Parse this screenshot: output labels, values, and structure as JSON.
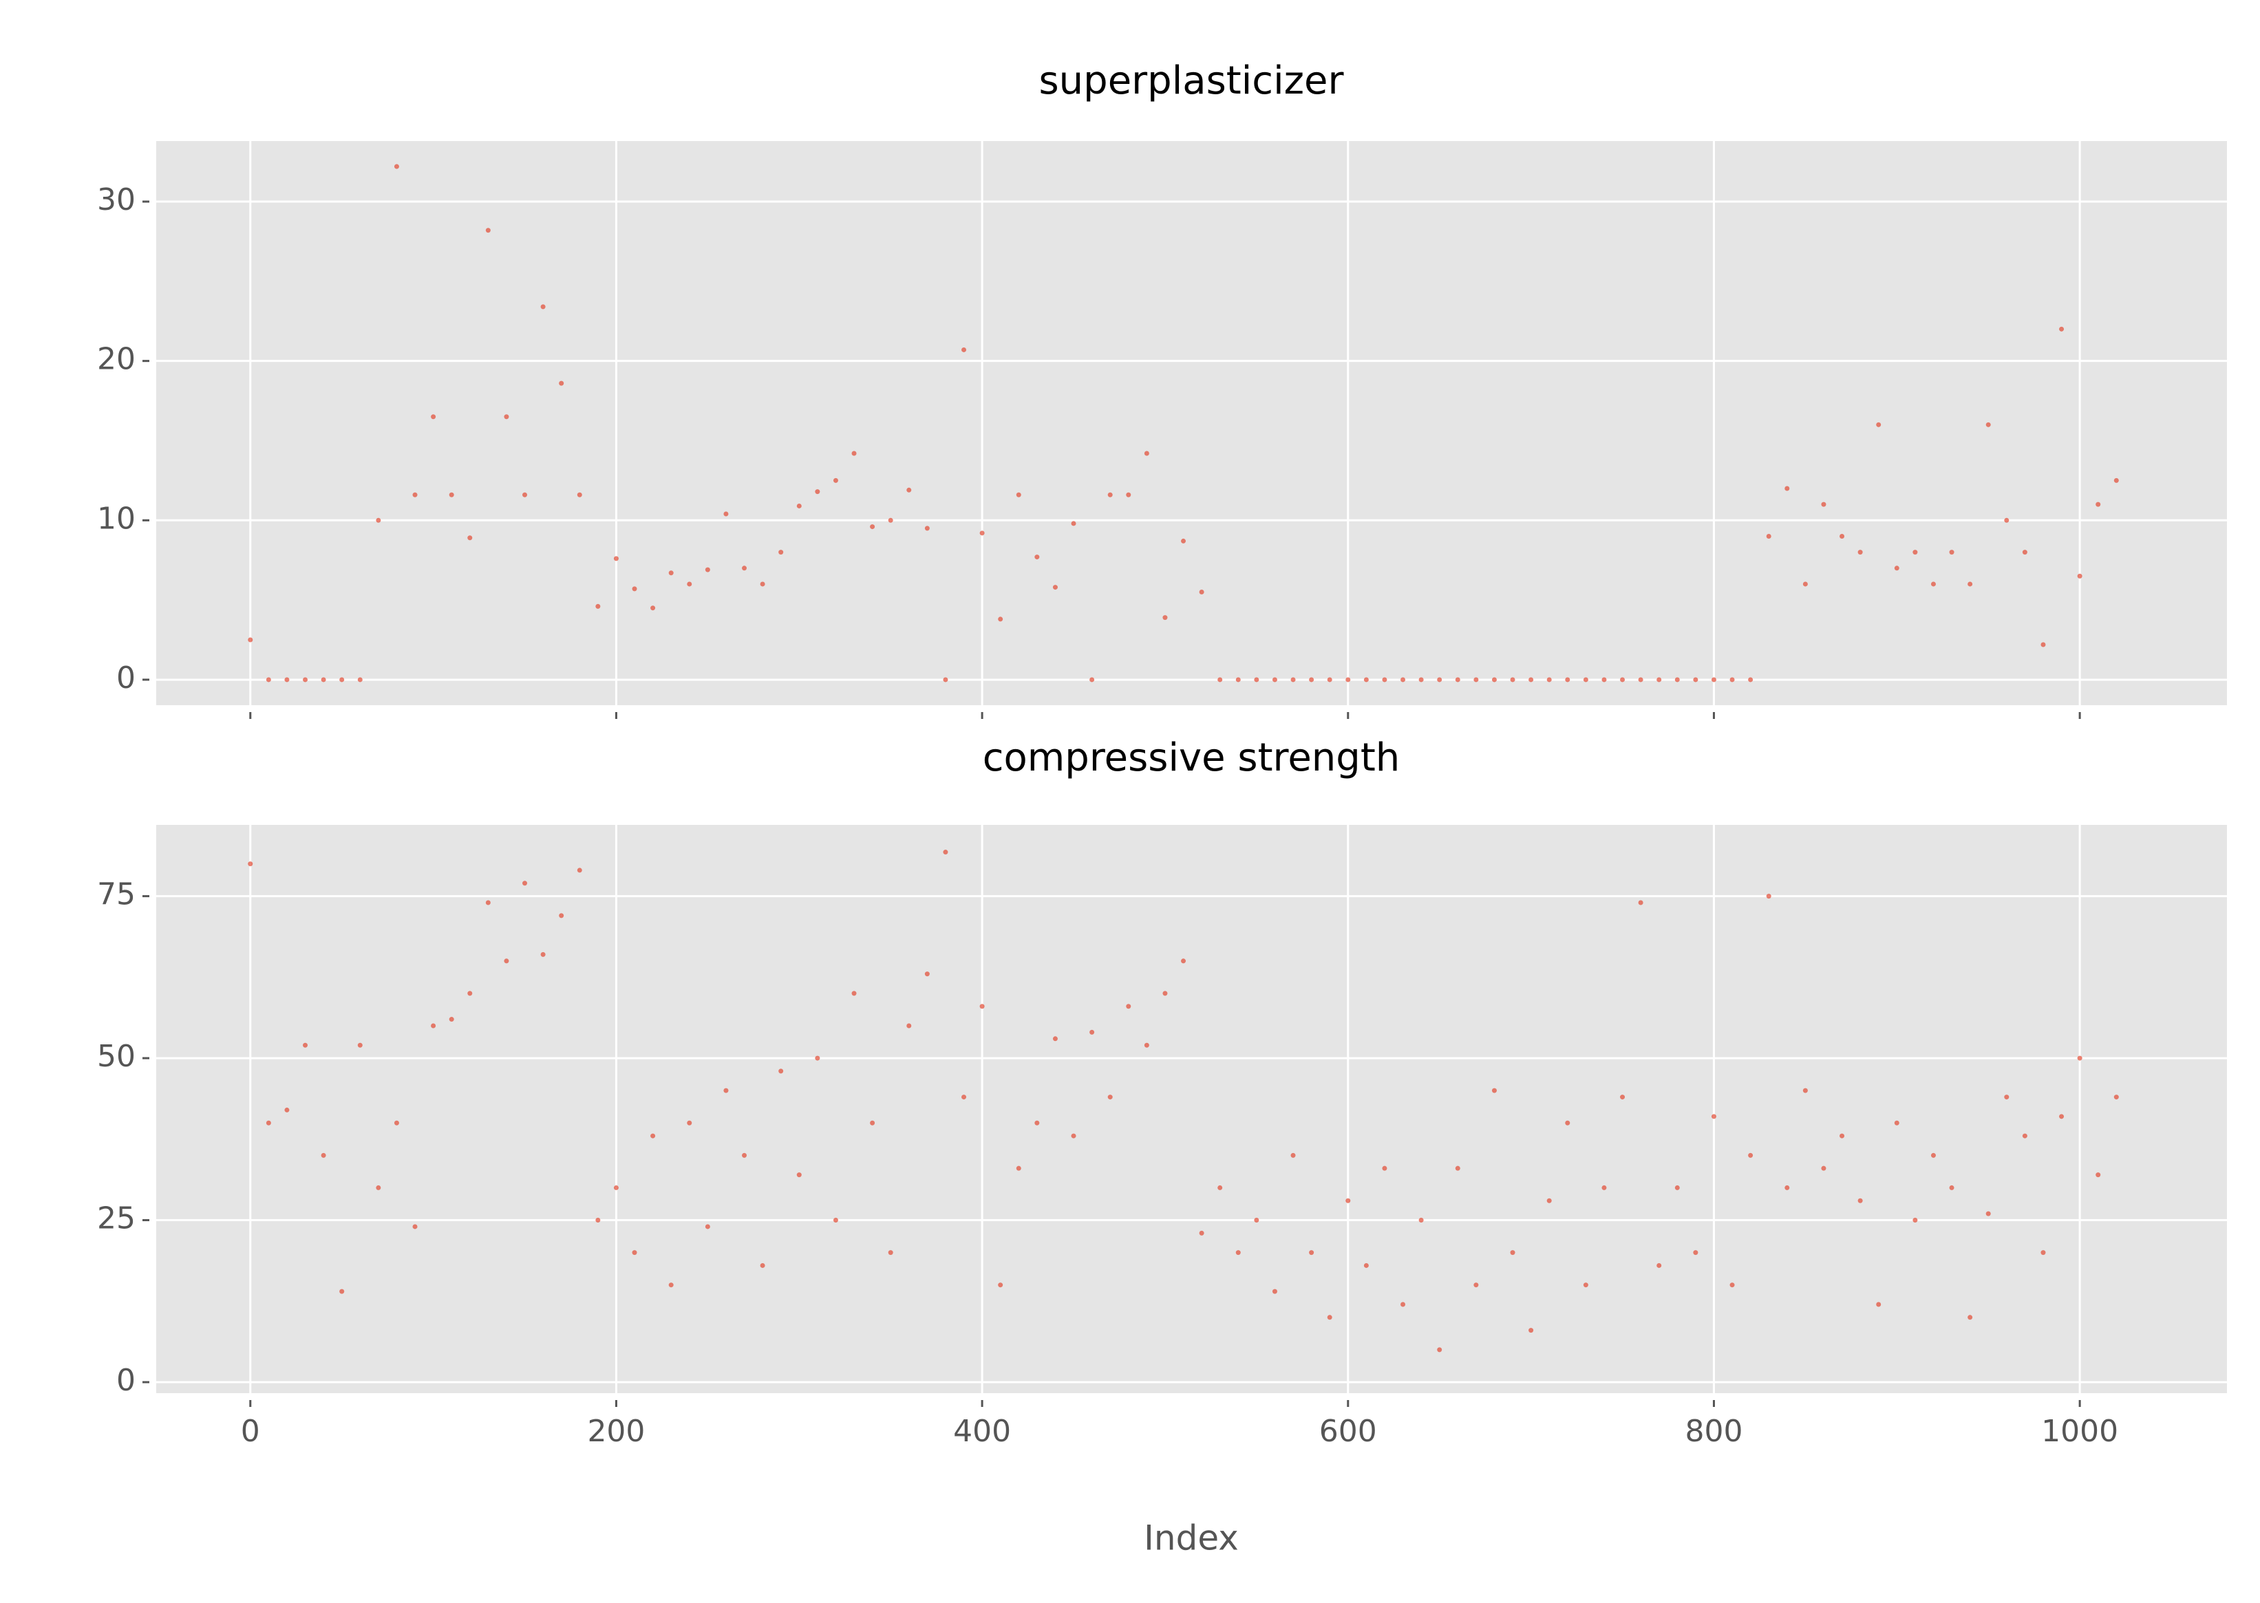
{
  "chart_data": [
    {
      "type": "scatter",
      "title": "superplasticizer",
      "color": "#E24A33",
      "x": [
        0,
        10,
        20,
        30,
        40,
        50,
        60,
        70,
        80,
        90,
        100,
        110,
        120,
        130,
        140,
        150,
        160,
        170,
        180,
        190,
        200,
        210,
        220,
        230,
        240,
        250,
        260,
        270,
        280,
        290,
        300,
        310,
        320,
        330,
        340,
        350,
        360,
        370,
        380,
        390,
        400,
        410,
        420,
        430,
        440,
        450,
        460,
        470,
        480,
        490,
        500,
        510,
        520,
        530,
        540,
        550,
        560,
        570,
        580,
        590,
        600,
        610,
        620,
        630,
        640,
        650,
        660,
        670,
        680,
        690,
        700,
        710,
        720,
        730,
        740,
        750,
        760,
        770,
        780,
        790,
        800,
        810,
        820,
        830,
        840,
        850,
        860,
        870,
        880,
        890,
        900,
        910,
        920,
        930,
        940,
        950,
        960,
        970,
        980,
        990,
        1000,
        1010,
        1020
      ],
      "values": [
        2.5,
        0,
        0,
        0,
        0,
        0,
        0,
        10,
        32.2,
        11.6,
        16.5,
        11.6,
        8.9,
        28.2,
        16.5,
        11.6,
        23.4,
        18.6,
        11.6,
        4.6,
        7.6,
        5.7,
        4.5,
        6.7,
        6.0,
        6.9,
        10.4,
        7.0,
        6.0,
        8.0,
        10.9,
        11.8,
        12.5,
        14.2,
        9.6,
        10.0,
        11.9,
        9.5,
        0,
        20.7,
        9.2,
        3.8,
        11.6,
        7.7,
        5.8,
        9.8,
        0,
        11.6,
        11.6,
        14.2,
        3.9,
        8.7,
        5.5,
        0,
        0,
        0,
        0,
        0,
        0,
        0,
        0,
        0,
        0,
        0,
        0,
        0,
        0,
        0,
        0,
        0,
        0,
        0,
        0,
        0,
        0,
        0,
        0,
        0,
        0,
        0,
        0,
        0,
        0,
        9.0,
        12.0,
        6.0,
        11.0,
        9.0,
        8.0,
        16.0,
        7.0,
        8.0,
        6.0,
        8.0,
        6.0,
        16.0,
        10.0,
        8.0,
        2.2,
        22.0,
        6.5,
        11.0,
        12.5
      ],
      "xlim": [
        -51.45,
        1080.45
      ],
      "xticks": [
        0,
        200,
        400,
        600,
        800,
        1000
      ],
      "ylim": [
        -1.6,
        33.8
      ],
      "yticks": [
        0,
        10,
        20,
        30
      ],
      "grid": true
    },
    {
      "type": "scatter",
      "title": "compressive strength",
      "x_label": "Index",
      "color": "#E24A33",
      "x": [
        0,
        10,
        20,
        30,
        40,
        50,
        60,
        70,
        80,
        90,
        100,
        110,
        120,
        130,
        140,
        150,
        160,
        170,
        180,
        190,
        200,
        210,
        220,
        230,
        240,
        250,
        260,
        270,
        280,
        290,
        300,
        310,
        320,
        330,
        340,
        350,
        360,
        370,
        380,
        390,
        400,
        410,
        420,
        430,
        440,
        450,
        460,
        470,
        480,
        490,
        500,
        510,
        520,
        530,
        540,
        550,
        560,
        570,
        580,
        590,
        600,
        610,
        620,
        630,
        640,
        650,
        660,
        670,
        680,
        690,
        700,
        710,
        720,
        730,
        740,
        750,
        760,
        770,
        780,
        790,
        800,
        810,
        820,
        830,
        840,
        850,
        860,
        870,
        880,
        890,
        900,
        910,
        920,
        930,
        940,
        950,
        960,
        970,
        980,
        990,
        1000,
        1010,
        1020
      ],
      "values": [
        79.99,
        40,
        42,
        52,
        35,
        14,
        52,
        30,
        40,
        24,
        55,
        56,
        60,
        74,
        65,
        77,
        66,
        72,
        79,
        25,
        30,
        20,
        38,
        15,
        40,
        24,
        45,
        35,
        18,
        48,
        32,
        50,
        25,
        60,
        40,
        20,
        55,
        63,
        81.8,
        44,
        58,
        15,
        33,
        40,
        53,
        38,
        54,
        44,
        58,
        52,
        60,
        65,
        23,
        30,
        20,
        25,
        14,
        35,
        20,
        10,
        28,
        18,
        33,
        12,
        25,
        5,
        33,
        15,
        45,
        20,
        8,
        28,
        40,
        15,
        30,
        44,
        74,
        18,
        30,
        20,
        41,
        15,
        35,
        75,
        30,
        45,
        33,
        38,
        28,
        12,
        40,
        25,
        35,
        30,
        10,
        26,
        44,
        38,
        20,
        41,
        50,
        32,
        44
      ],
      "xlim": [
        -51.45,
        1080.45
      ],
      "xticks": [
        0,
        200,
        400,
        600,
        800,
        1000
      ],
      "ylim": [
        -1.7,
        86.0
      ],
      "yticks": [
        0,
        25,
        50,
        75
      ],
      "grid": true
    }
  ]
}
